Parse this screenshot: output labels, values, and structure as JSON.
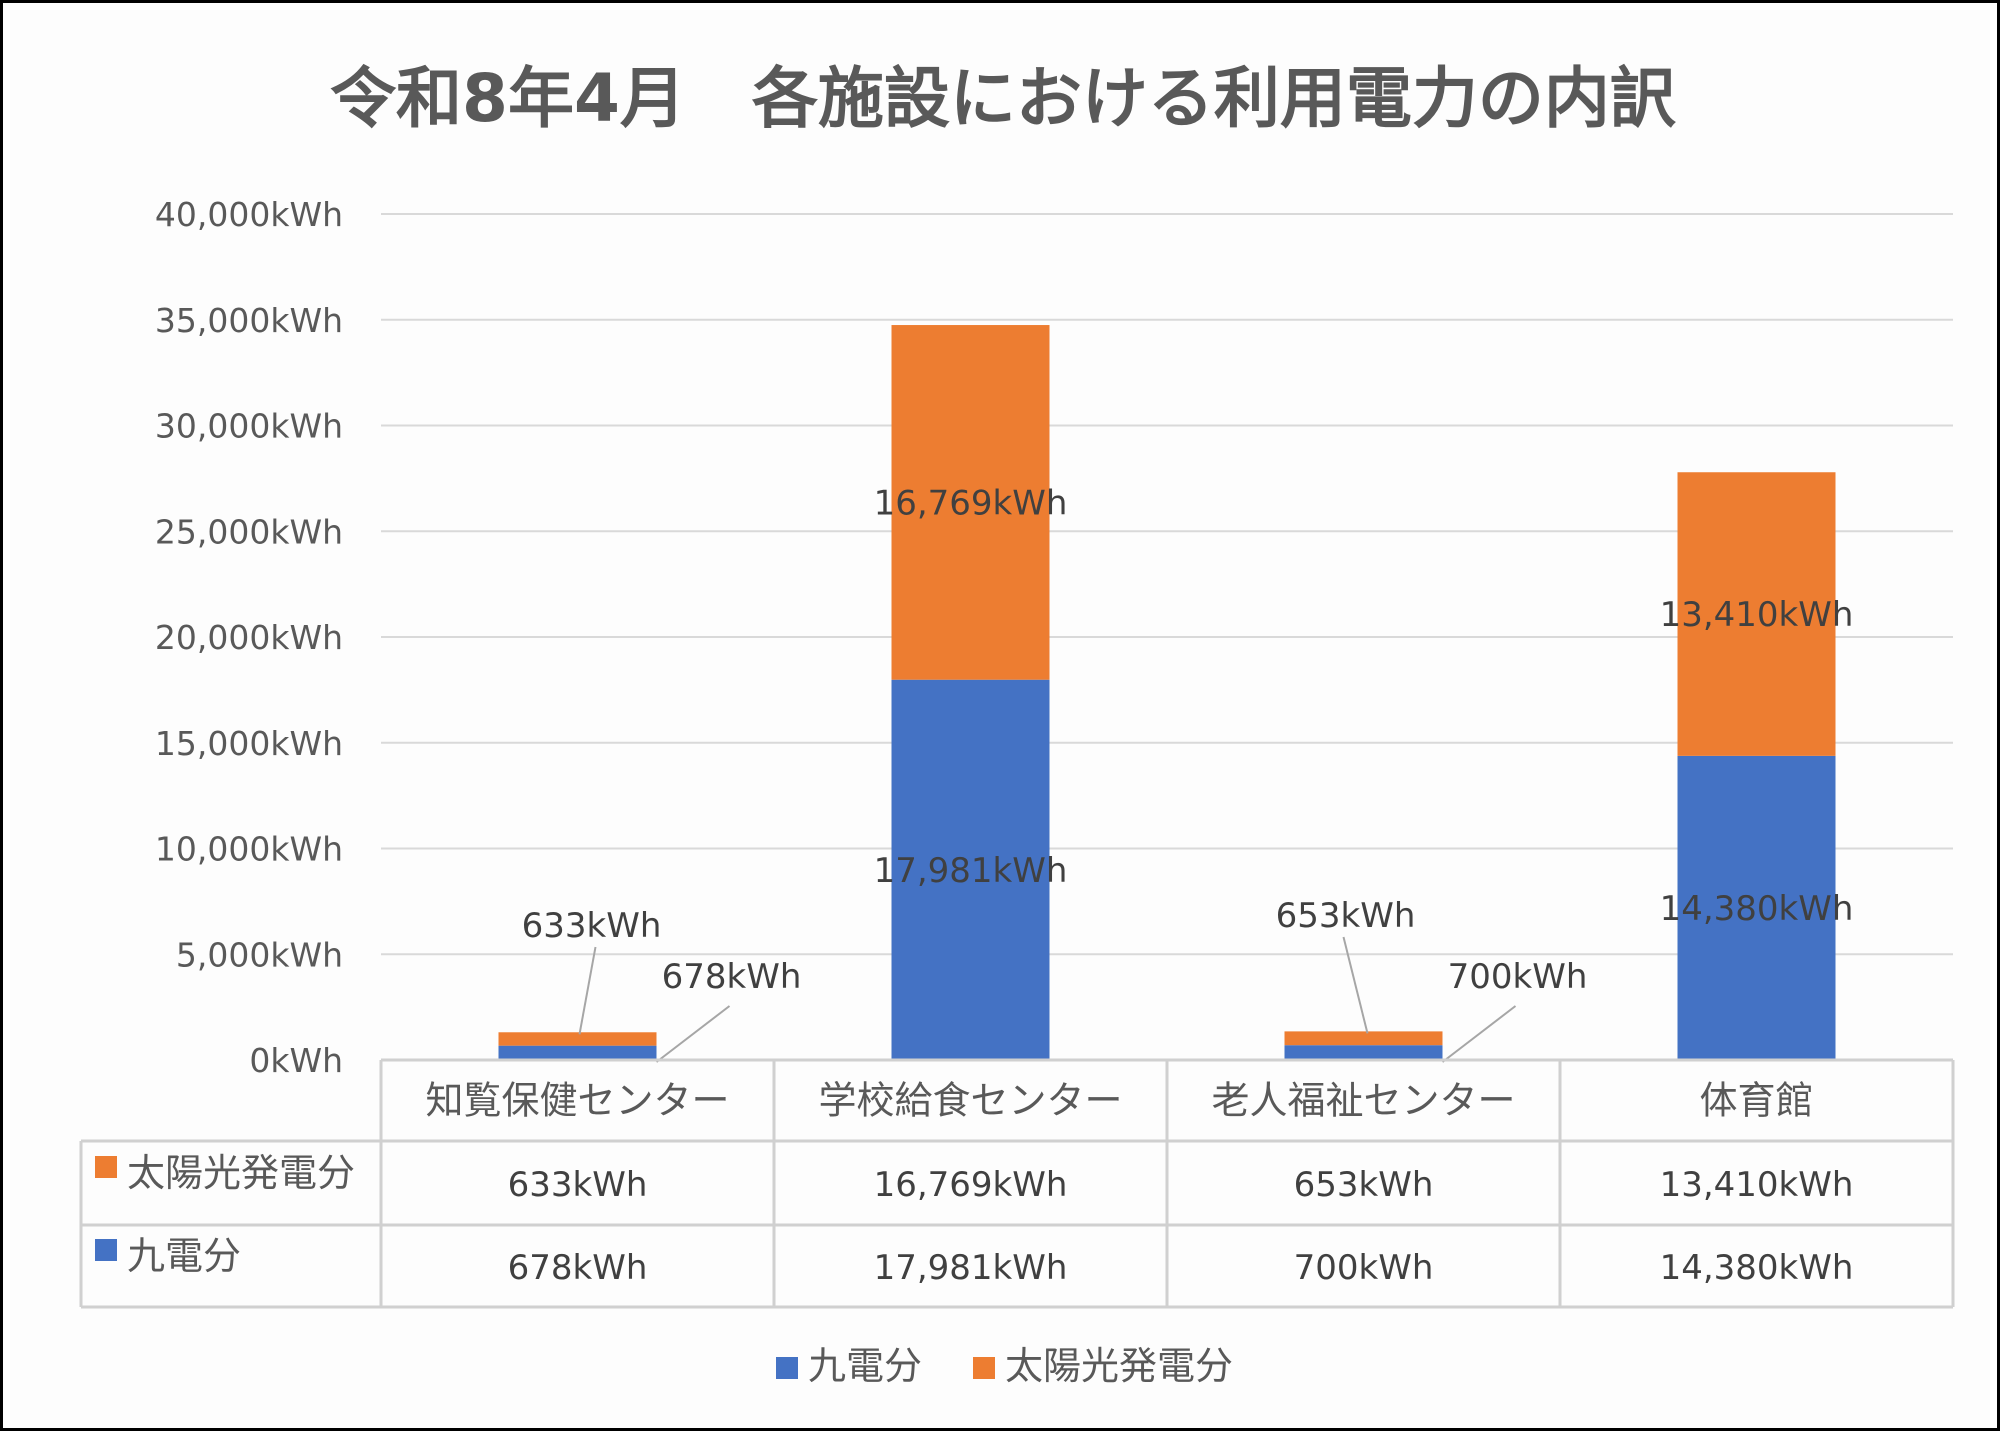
{
  "chart_data": {
    "type": "bar",
    "stacked": true,
    "title": "令和8年4月　各施設における利用電力の内訳",
    "categories": [
      "知覧保健センター",
      "学校給食センター",
      "老人福祉センター",
      "体育館"
    ],
    "series": [
      {
        "name": "九電分",
        "color": "#4472c4",
        "values": [
          678,
          17981,
          700,
          14380
        ],
        "labels": [
          "678kWh",
          "17,981kWh",
          "700kWh",
          "14,380kWh"
        ]
      },
      {
        "name": "太陽光発電分",
        "color": "#ed7d31",
        "values": [
          633,
          16769,
          653,
          13410
        ],
        "labels": [
          "633kWh",
          "16,769kWh",
          "653kWh",
          "13,410kWh"
        ]
      }
    ],
    "ylim": [
      0,
      40000
    ],
    "yticks": [
      0,
      5000,
      10000,
      15000,
      20000,
      25000,
      30000,
      35000,
      40000
    ],
    "ytick_labels": [
      "0kWh",
      "5,000kWh",
      "10,000kWh",
      "15,000kWh",
      "20,000kWh",
      "25,000kWh",
      "30,000kWh",
      "35,000kWh",
      "40,000kWh"
    ],
    "grid": true,
    "legend": [
      "九電分",
      "太陽光発電分"
    ],
    "legend_position": "bottom",
    "data_table": {
      "rows": [
        {
          "series": "太陽光発電分",
          "color": "#ed7d31",
          "cells": [
            "633kWh",
            "16,769kWh",
            "653kWh",
            "13,410kWh"
          ]
        },
        {
          "series": "九電分",
          "color": "#4472c4",
          "cells": [
            "678kWh",
            "17,981kWh",
            "700kWh",
            "14,380kWh"
          ]
        }
      ]
    }
  }
}
